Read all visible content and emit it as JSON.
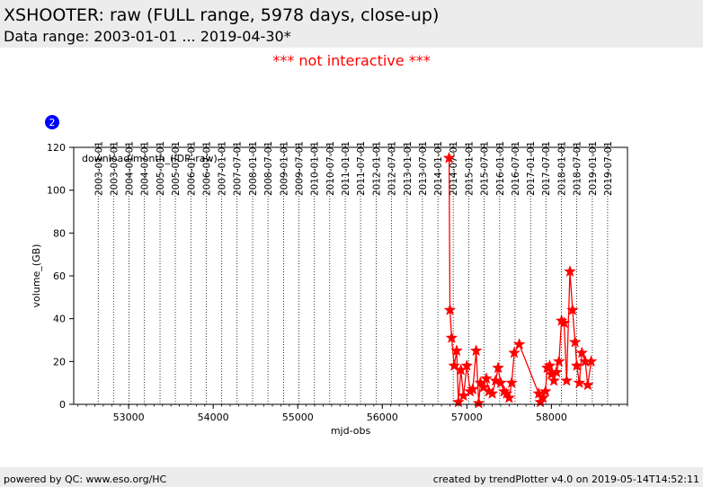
{
  "header": {
    "title": "XSHOOTER: raw (FULL range, 5978 days, close-up)",
    "subtitle": "Data range: 2003-01-01 ... 2019-04-30*"
  },
  "notice": "*** not interactive ***",
  "badge": "2",
  "footer": {
    "left": "powered by QC: www.eso.org/HC",
    "right": "created by trendPlotter v4.0 on 2019-05-14T14:52:11"
  },
  "colors": {
    "series": "#ff0000",
    "notice": "#ff0000",
    "badge": "#0000ff",
    "band": "#ececec"
  },
  "chart_data": {
    "type": "line",
    "xlabel": "mjd-obs",
    "ylabel": "volume_(GB)",
    "annotation": "download/month_(IDP_raw)",
    "xlim": [
      52350,
      58900
    ],
    "ylim": [
      0,
      120
    ],
    "x_ticks": [
      53000,
      54000,
      55000,
      56000,
      57000,
      58000
    ],
    "x_tick_labels": [
      "53000",
      "54000",
      "55000",
      "56000",
      "57000",
      "58000"
    ],
    "y_ticks": [
      0,
      20,
      40,
      60,
      80,
      100,
      120
    ],
    "y_tick_labels": [
      "0",
      "20",
      "40",
      "60",
      "80",
      "100",
      "120"
    ],
    "date_ticks": [
      {
        "label": "2003-01-01",
        "mjd": 52640
      },
      {
        "label": "2003-07-01",
        "mjd": 52821
      },
      {
        "label": "2004-01-01",
        "mjd": 53005
      },
      {
        "label": "2004-07-01",
        "mjd": 53187
      },
      {
        "label": "2005-01-01",
        "mjd": 53371
      },
      {
        "label": "2005-07-01",
        "mjd": 53552
      },
      {
        "label": "2006-01-01",
        "mjd": 53736
      },
      {
        "label": "2006-07-01",
        "mjd": 53917
      },
      {
        "label": "2007-01-01",
        "mjd": 54101
      },
      {
        "label": "2007-07-01",
        "mjd": 54282
      },
      {
        "label": "2008-01-01",
        "mjd": 54466
      },
      {
        "label": "2008-07-01",
        "mjd": 54648
      },
      {
        "label": "2009-01-01",
        "mjd": 54832
      },
      {
        "label": "2009-07-01",
        "mjd": 55013
      },
      {
        "label": "2010-01-01",
        "mjd": 55197
      },
      {
        "label": "2010-07-01",
        "mjd": 55378
      },
      {
        "label": "2011-01-01",
        "mjd": 55562
      },
      {
        "label": "2011-07-01",
        "mjd": 55743
      },
      {
        "label": "2012-01-01",
        "mjd": 55927
      },
      {
        "label": "2012-07-01",
        "mjd": 56109
      },
      {
        "label": "2013-01-01",
        "mjd": 56293
      },
      {
        "label": "2013-07-01",
        "mjd": 56474
      },
      {
        "label": "2014-01-01",
        "mjd": 56658
      },
      {
        "label": "2014-07-01",
        "mjd": 56839
      },
      {
        "label": "2015-01-01",
        "mjd": 57023
      },
      {
        "label": "2015-07-01",
        "mjd": 57204
      },
      {
        "label": "2016-01-01",
        "mjd": 57388
      },
      {
        "label": "2016-07-01",
        "mjd": 57570
      },
      {
        "label": "2017-01-01",
        "mjd": 57754
      },
      {
        "label": "2017-07-01",
        "mjd": 57935
      },
      {
        "label": "2018-01-01",
        "mjd": 58119
      },
      {
        "label": "2018-07-01",
        "mjd": 58300
      },
      {
        "label": "2019-01-01",
        "mjd": 58484
      },
      {
        "label": "2019-07-01",
        "mjd": 58665
      }
    ],
    "grid": "vertical dotted at date ticks",
    "series": [
      {
        "color": "#ff0000",
        "marker": "star",
        "points": [
          [
            56790,
            115
          ],
          [
            56800,
            44
          ],
          [
            56820,
            31
          ],
          [
            56850,
            18
          ],
          [
            56880,
            25
          ],
          [
            56900,
            1
          ],
          [
            56930,
            16
          ],
          [
            56960,
            4
          ],
          [
            57000,
            18
          ],
          [
            57040,
            6
          ],
          [
            57070,
            7
          ],
          [
            57110,
            25
          ],
          [
            57140,
            0.5
          ],
          [
            57160,
            10
          ],
          [
            57200,
            8
          ],
          [
            57230,
            12
          ],
          [
            57260,
            6
          ],
          [
            57300,
            5
          ],
          [
            57340,
            11
          ],
          [
            57370,
            17
          ],
          [
            57400,
            10
          ],
          [
            57440,
            6
          ],
          [
            57470,
            5
          ],
          [
            57500,
            3
          ],
          [
            57530,
            10
          ],
          [
            57560,
            24
          ],
          [
            57620,
            28
          ],
          [
            57850,
            5
          ],
          [
            57870,
            1
          ],
          [
            57900,
            3
          ],
          [
            57930,
            6
          ],
          [
            57950,
            17
          ],
          [
            57980,
            18
          ],
          [
            58000,
            14
          ],
          [
            58030,
            11
          ],
          [
            58060,
            15
          ],
          [
            58090,
            20
          ],
          [
            58120,
            39
          ],
          [
            58150,
            38
          ],
          [
            58180,
            11
          ],
          [
            58220,
            62
          ],
          [
            58250,
            44
          ],
          [
            58280,
            29
          ],
          [
            58300,
            18
          ],
          [
            58330,
            10
          ],
          [
            58360,
            24
          ],
          [
            58400,
            20
          ],
          [
            58430,
            9
          ],
          [
            58470,
            20
          ]
        ]
      }
    ]
  }
}
